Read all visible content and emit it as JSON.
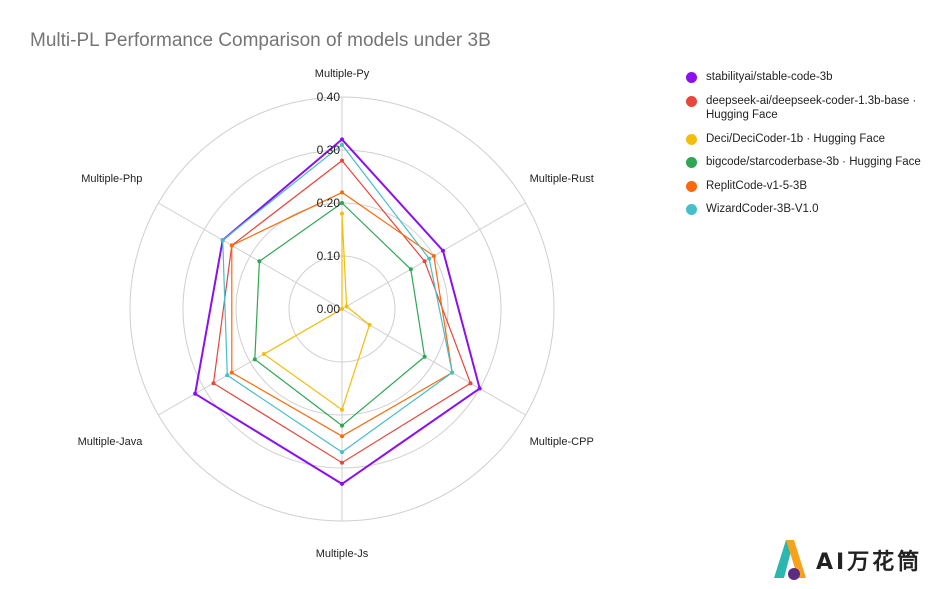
{
  "chart_data": {
    "type": "radar",
    "title": "Multi-PL Performance Comparison of models under 3B",
    "axes": [
      "Multiple-Py",
      "Multiple-Rust",
      "Multiple-CPP",
      "Multiple-Js",
      "Multiple-Java",
      "Multiple-Php"
    ],
    "range": [
      0,
      0.4
    ],
    "ticks": [
      0.0,
      0.1,
      0.2,
      0.3,
      0.4
    ],
    "tick_labels": [
      "0.00",
      "0.10",
      "0.20",
      "0.30",
      "0.40"
    ],
    "legend_position": "top-right",
    "series": [
      {
        "name": "stabilityai/stable-code-3b",
        "color": "#8b10f0",
        "values": [
          0.32,
          0.22,
          0.3,
          0.33,
          0.32,
          0.26
        ]
      },
      {
        "name": "deepseek-ai/deepseek-coder-1.3b-base · Hugging Face",
        "color": "#e8453c",
        "values": [
          0.28,
          0.18,
          0.28,
          0.29,
          0.28,
          0.24
        ]
      },
      {
        "name": "Deci/DeciCoder-1b · Hugging Face",
        "color": "#f4bd0b",
        "values": [
          0.18,
          0.01,
          0.06,
          0.19,
          0.17,
          0.0
        ]
      },
      {
        "name": "bigcode/starcoderbase-3b · Hugging Face",
        "color": "#2ea653",
        "values": [
          0.2,
          0.15,
          0.18,
          0.22,
          0.19,
          0.18
        ]
      },
      {
        "name": "ReplitCode-v1-5-3B",
        "color": "#fa6a0a",
        "values": [
          0.22,
          0.2,
          0.24,
          0.24,
          0.24,
          0.24
        ]
      },
      {
        "name": "WizardCoder-3B-V1.0",
        "color": "#47bec8",
        "values": [
          0.31,
          0.19,
          0.24,
          0.27,
          0.25,
          0.26
        ]
      }
    ]
  },
  "watermark": {
    "text": "AI万花筒"
  }
}
